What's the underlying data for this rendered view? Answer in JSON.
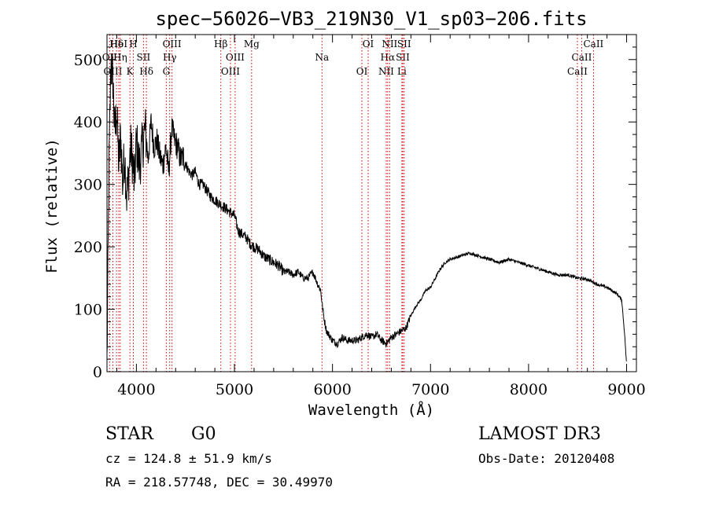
{
  "chart_data": {
    "type": "line",
    "title": "spec−56026−VB3_219N30_V1_sp03−206.fits",
    "xlabel": "Wavelength (Å)",
    "ylabel": "Flux (relative)",
    "xlim": [
      3700,
      9100
    ],
    "ylim": [
      0,
      540
    ],
    "xticks": [
      4000,
      5000,
      6000,
      7000,
      8000,
      9000
    ],
    "yticks": [
      0,
      100,
      200,
      300,
      400,
      500
    ],
    "series": [
      {
        "name": "flux",
        "x": [
          3700,
          3720,
          3740,
          3760,
          3780,
          3800,
          3820,
          3840,
          3860,
          3880,
          3900,
          3920,
          3940,
          3960,
          3980,
          4000,
          4030,
          4060,
          4090,
          4120,
          4150,
          4180,
          4210,
          4240,
          4270,
          4300,
          4330,
          4360,
          4390,
          4420,
          4450,
          4480,
          4510,
          4540,
          4570,
          4600,
          4640,
          4680,
          4720,
          4760,
          4800,
          4840,
          4880,
          4920,
          4960,
          5000,
          5040,
          5080,
          5120,
          5160,
          5200,
          5250,
          5300,
          5350,
          5400,
          5450,
          5500,
          5550,
          5600,
          5650,
          5700,
          5750,
          5800,
          5850,
          5880,
          5900,
          5920,
          5940,
          5960,
          5980,
          6000,
          6050,
          6100,
          6150,
          6200,
          6250,
          6300,
          6350,
          6400,
          6450,
          6500,
          6550,
          6600,
          6650,
          6700,
          6750,
          6800,
          6850,
          6900,
          6950,
          7000,
          7050,
          7100,
          7150,
          7200,
          7300,
          7400,
          7500,
          7600,
          7700,
          7800,
          7900,
          8000,
          8100,
          8200,
          8300,
          8400,
          8500,
          8600,
          8700,
          8800,
          8900,
          8950,
          8980,
          9000
        ],
        "values": [
          15,
          320,
          495,
          470,
          380,
          420,
          330,
          380,
          300,
          350,
          280,
          310,
          360,
          340,
          300,
          370,
          330,
          360,
          390,
          340,
          400,
          360,
          370,
          345,
          330,
          360,
          320,
          390,
          370,
          360,
          340,
          345,
          330,
          320,
          315,
          320,
          300,
          300,
          290,
          280,
          275,
          270,
          265,
          260,
          255,
          250,
          225,
          220,
          215,
          205,
          200,
          195,
          185,
          180,
          175,
          170,
          160,
          160,
          155,
          160,
          150,
          150,
          160,
          140,
          130,
          100,
          80,
          65,
          60,
          55,
          50,
          45,
          55,
          50,
          50,
          50,
          55,
          60,
          55,
          60,
          50,
          45,
          55,
          60,
          65,
          70,
          90,
          105,
          115,
          130,
          135,
          150,
          165,
          175,
          180,
          185,
          190,
          185,
          180,
          175,
          180,
          175,
          170,
          165,
          160,
          155,
          155,
          150,
          148,
          140,
          135,
          125,
          115,
          60,
          10
        ]
      }
    ],
    "line_markers": [
      {
        "label": "Hδ",
        "wave": 3797
      },
      {
        "label": "OII",
        "wave": 3727
      },
      {
        "label": "OIII",
        "wave": 3760
      },
      {
        "label": "HeI",
        "wave": 3820
      },
      {
        "label": "Hη",
        "wave": 3835
      },
      {
        "label": "K",
        "wave": 3934
      },
      {
        "label": "H",
        "wave": 3969
      },
      {
        "label": "SII",
        "wave": 4072
      },
      {
        "label": "Hδ",
        "wave": 4102
      },
      {
        "label": "OIII",
        "wave": 4363
      },
      {
        "label": "Hγ",
        "wave": 4340
      },
      {
        "label": "G",
        "wave": 4305
      },
      {
        "label": "Hβ",
        "wave": 4861
      },
      {
        "label": "OIII",
        "wave": 5007
      },
      {
        "label": "OIII",
        "wave": 4959
      },
      {
        "label": "Mg",
        "wave": 5175
      },
      {
        "label": "Na",
        "wave": 5893
      },
      {
        "label": "OI",
        "wave": 6300
      },
      {
        "label": "OI",
        "wave": 6364
      },
      {
        "label": "Hα",
        "wave": 6563
      },
      {
        "label": "NII",
        "wave": 6548
      },
      {
        "label": "NII",
        "wave": 6583
      },
      {
        "label": "SII",
        "wave": 6717
      },
      {
        "label": "Li",
        "wave": 6708
      },
      {
        "label": "SII",
        "wave": 6731
      },
      {
        "label": "CaII",
        "wave": 8542
      },
      {
        "label": "CaII",
        "wave": 8498
      },
      {
        "label": "CaII",
        "wave": 8662
      }
    ]
  },
  "info": {
    "object_class": "STAR",
    "subclass": "G0",
    "survey": "LAMOST DR3",
    "redshift": "cz = 124.8 ± 51.9 km/s",
    "obs_date": "Obs-Date: 20120408",
    "coords": "RA = 218.57748, DEC =  30.49970"
  }
}
